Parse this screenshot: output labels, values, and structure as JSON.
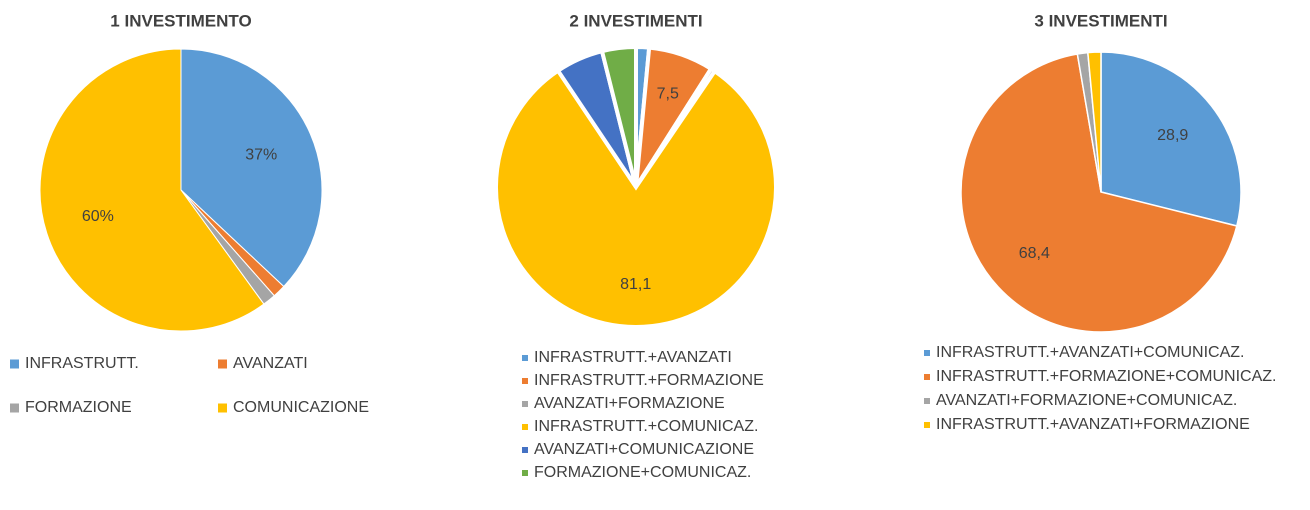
{
  "chart_data": [
    {
      "type": "pie",
      "title": "1 INVESTIMENTO",
      "categories": [
        "INFRASTRUTT.",
        "AVANZATI",
        "FORMAZIONE",
        "COMUNICAZIONE"
      ],
      "values": [
        37,
        1.5,
        1.5,
        60
      ],
      "value_labels": [
        "37%",
        null,
        null,
        "60%"
      ],
      "colors": [
        "#5b9bd5",
        "#ed7d31",
        "#a5a5a5",
        "#ffc000"
      ],
      "legend": "bottom"
    },
    {
      "type": "pie",
      "title": "2 INVESTIMENTI",
      "categories": [
        "INFRASTRUTT.+AVANZATI",
        "INFRASTRUTT.+FORMAZIONE",
        "AVANZATI+FORMAZIONE",
        "INFRASTRUTT.+COMUNICAZ.",
        "AVANZATI+COMUNICAZIONE",
        "FORMAZIONE+COMUNICAZ."
      ],
      "values": [
        1.5,
        7.5,
        0.5,
        81.1,
        5.5,
        3.9
      ],
      "value_labels": [
        null,
        "7,5",
        null,
        "81,1",
        null,
        null
      ],
      "colors": [
        "#5b9bd5",
        "#ed7d31",
        "#a5a5a5",
        "#ffc000",
        "#4472c4",
        "#70ad47"
      ],
      "legend": "bottom"
    },
    {
      "type": "pie",
      "title": "3 INVESTIMENTI",
      "categories": [
        "INFRASTRUTT.+AVANZATI+COMUNICAZ.",
        "INFRASTRUTT.+FORMAZIONE+COMUNICAZ.",
        "AVANZATI+FORMAZIONE+COMUNICAZ.",
        "INFRASTRUTT.+AVANZATI+FORMAZIONE"
      ],
      "values": [
        28.9,
        68.4,
        1.2,
        1.5
      ],
      "value_labels": [
        "28,9",
        "68,4",
        null,
        null
      ],
      "colors": [
        "#5b9bd5",
        "#ed7d31",
        "#a5a5a5",
        "#ffc000"
      ],
      "legend": "bottom"
    }
  ]
}
